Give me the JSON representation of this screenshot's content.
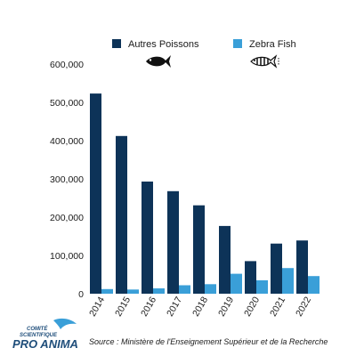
{
  "chart_data": {
    "type": "bar",
    "categories": [
      "2014",
      "2015",
      "2016",
      "2017",
      "2018",
      "2019",
      "2020",
      "2021",
      "2022"
    ],
    "series": [
      {
        "name": "Autres Poissons",
        "color": "#0d3358",
        "values": [
          523000,
          412000,
          293000,
          268000,
          231000,
          177000,
          85000,
          131000,
          139000
        ]
      },
      {
        "name": "Zebra Fish",
        "color": "#3a9fd8",
        "values": [
          12000,
          11000,
          14000,
          22000,
          25000,
          52000,
          35000,
          67000,
          46000
        ]
      }
    ],
    "ylim": [
      0,
      600000
    ],
    "yticks": [
      "0",
      "100,000",
      "200,000",
      "300,000",
      "400,000",
      "500,000",
      "600,000"
    ],
    "grid": false,
    "legend_position": "top",
    "legend_icons": [
      "fish-silhouette-icon",
      "zebra-fish-icon"
    ]
  },
  "source": "Source : Ministère de l'Enseignement Supérieur et de la Recherche",
  "logo": {
    "line1": "COMITÉ",
    "line2": "SCIENTIFIQUE",
    "line3": "PRO ANIMA",
    "color": "#1e4d7a"
  }
}
